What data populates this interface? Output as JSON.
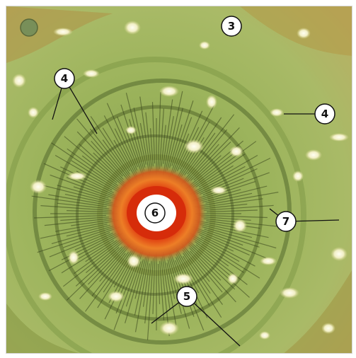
{
  "figure": {
    "callouts": [
      {
        "id": "callout-3",
        "label": "3"
      },
      {
        "id": "callout-4a",
        "label": "4"
      },
      {
        "id": "callout-4b",
        "label": "4"
      },
      {
        "id": "callout-5",
        "label": "5"
      },
      {
        "id": "callout-6",
        "label": "6"
      },
      {
        "id": "callout-7",
        "label": "7"
      }
    ],
    "colors": {
      "background_green": "#a7b86a",
      "ring_green": "#7e9a46",
      "dark_vein": "#3d4a1f",
      "center_red": "#d8300c",
      "center_orange": "#f07a22",
      "center_core": "#ffffff",
      "spots": "#f6f4d6"
    }
  }
}
